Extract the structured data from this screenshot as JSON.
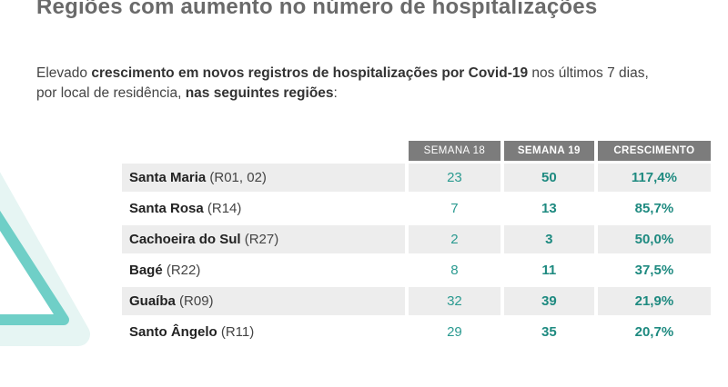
{
  "title": "Regiões com aumento no número de hospitalizações",
  "intro": {
    "line1_part1": "Elevado ",
    "line1_bold": "crescimento em novos registros de hospitalizações por Covid-19",
    "line1_part2": " nos últimos 7 dias,",
    "line2_part1": "por local de residência, ",
    "line2_bold": "nas seguintes regiões",
    "line2_part2": ":"
  },
  "colors": {
    "accent": "#1e8a80",
    "header_bg": "#7c7c7c",
    "row_shade": "#ededed",
    "decoration": "#6fcfc7"
  },
  "table": {
    "headers": [
      "SEMANA 18",
      "SEMANA 19",
      "CRESCIMENTO"
    ],
    "rows": [
      {
        "name": "Santa Maria",
        "code": "(R01, 02)",
        "w18": "23",
        "w19": "50",
        "growth": "117,4%"
      },
      {
        "name": "Santa Rosa",
        "code": "(R14)",
        "w18": "7",
        "w19": "13",
        "growth": "85,7%"
      },
      {
        "name": "Cachoeira do Sul",
        "code": "(R27)",
        "w18": "2",
        "w19": "3",
        "growth": "50,0%"
      },
      {
        "name": "Bagé",
        "code": "(R22)",
        "w18": "8",
        "w19": "11",
        "growth": "37,5%"
      },
      {
        "name": "Guaíba",
        "code": "(R09)",
        "w18": "32",
        "w19": "39",
        "growth": "21,9%"
      },
      {
        "name": "Santo Ângelo",
        "code": "(R11)",
        "w18": "29",
        "w19": "35",
        "growth": "20,7%"
      }
    ]
  }
}
